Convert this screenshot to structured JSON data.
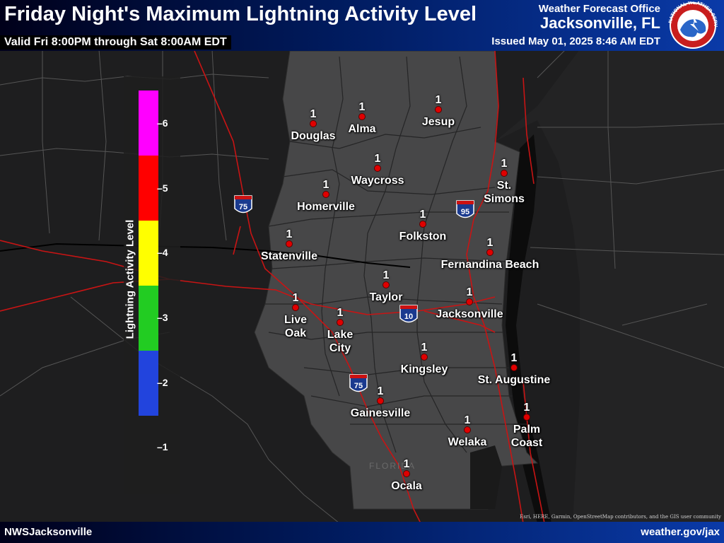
{
  "header": {
    "title": "Friday Night's Maximum Lightning Activity Level",
    "valid": "Valid Fri 8:00PM through Sat 8:00AM EDT",
    "office_line1": "Weather Forecast Office",
    "office_line2": "Jacksonville, FL",
    "issued": "Issued May 01, 2025 8:46 AM EDT",
    "logo_text": "NATIONAL WEATHER SERVICE"
  },
  "footer": {
    "left": "NWSJacksonville",
    "right": "weather.gov/jax",
    "attribution": "Esri, HERE, Garmin, OpenStreetMap contributors, and the GIS user community"
  },
  "legend": {
    "title": "Lightning Activity Level",
    "levels": [
      {
        "value": "6",
        "color": "#ff00ff"
      },
      {
        "value": "5",
        "color": "#ff0000"
      },
      {
        "value": "4",
        "color": "#ffff00"
      },
      {
        "value": "3",
        "color": "#22cc22"
      },
      {
        "value": "2",
        "color": "#2244dd"
      },
      {
        "value": "1",
        "color": "#1a1a1a"
      }
    ]
  },
  "map": {
    "state_label": "FLORIDA",
    "interstates": [
      "75",
      "95",
      "10",
      "75"
    ],
    "cities": [
      {
        "name": "Douglas",
        "value": "1"
      },
      {
        "name": "Alma",
        "value": "1"
      },
      {
        "name": "Jesup",
        "value": "1"
      },
      {
        "name": "Waycross",
        "value": "1"
      },
      {
        "name": "St.\nSimons",
        "value": "1"
      },
      {
        "name": "Homerville",
        "value": "1"
      },
      {
        "name": "Folkston",
        "value": "1"
      },
      {
        "name": "Statenville",
        "value": "1"
      },
      {
        "name": "Fernandina Beach",
        "value": "1"
      },
      {
        "name": "Taylor",
        "value": "1"
      },
      {
        "name": "Live\nOak",
        "value": "1"
      },
      {
        "name": "Lake\nCity",
        "value": "1"
      },
      {
        "name": "Jacksonville",
        "value": "1"
      },
      {
        "name": "Kingsley",
        "value": "1"
      },
      {
        "name": "St. Augustine",
        "value": "1"
      },
      {
        "name": "Gainesville",
        "value": "1"
      },
      {
        "name": "Palm\nCoast",
        "value": "1"
      },
      {
        "name": "Welaka",
        "value": "1"
      },
      {
        "name": "Ocala",
        "value": "1"
      }
    ]
  }
}
